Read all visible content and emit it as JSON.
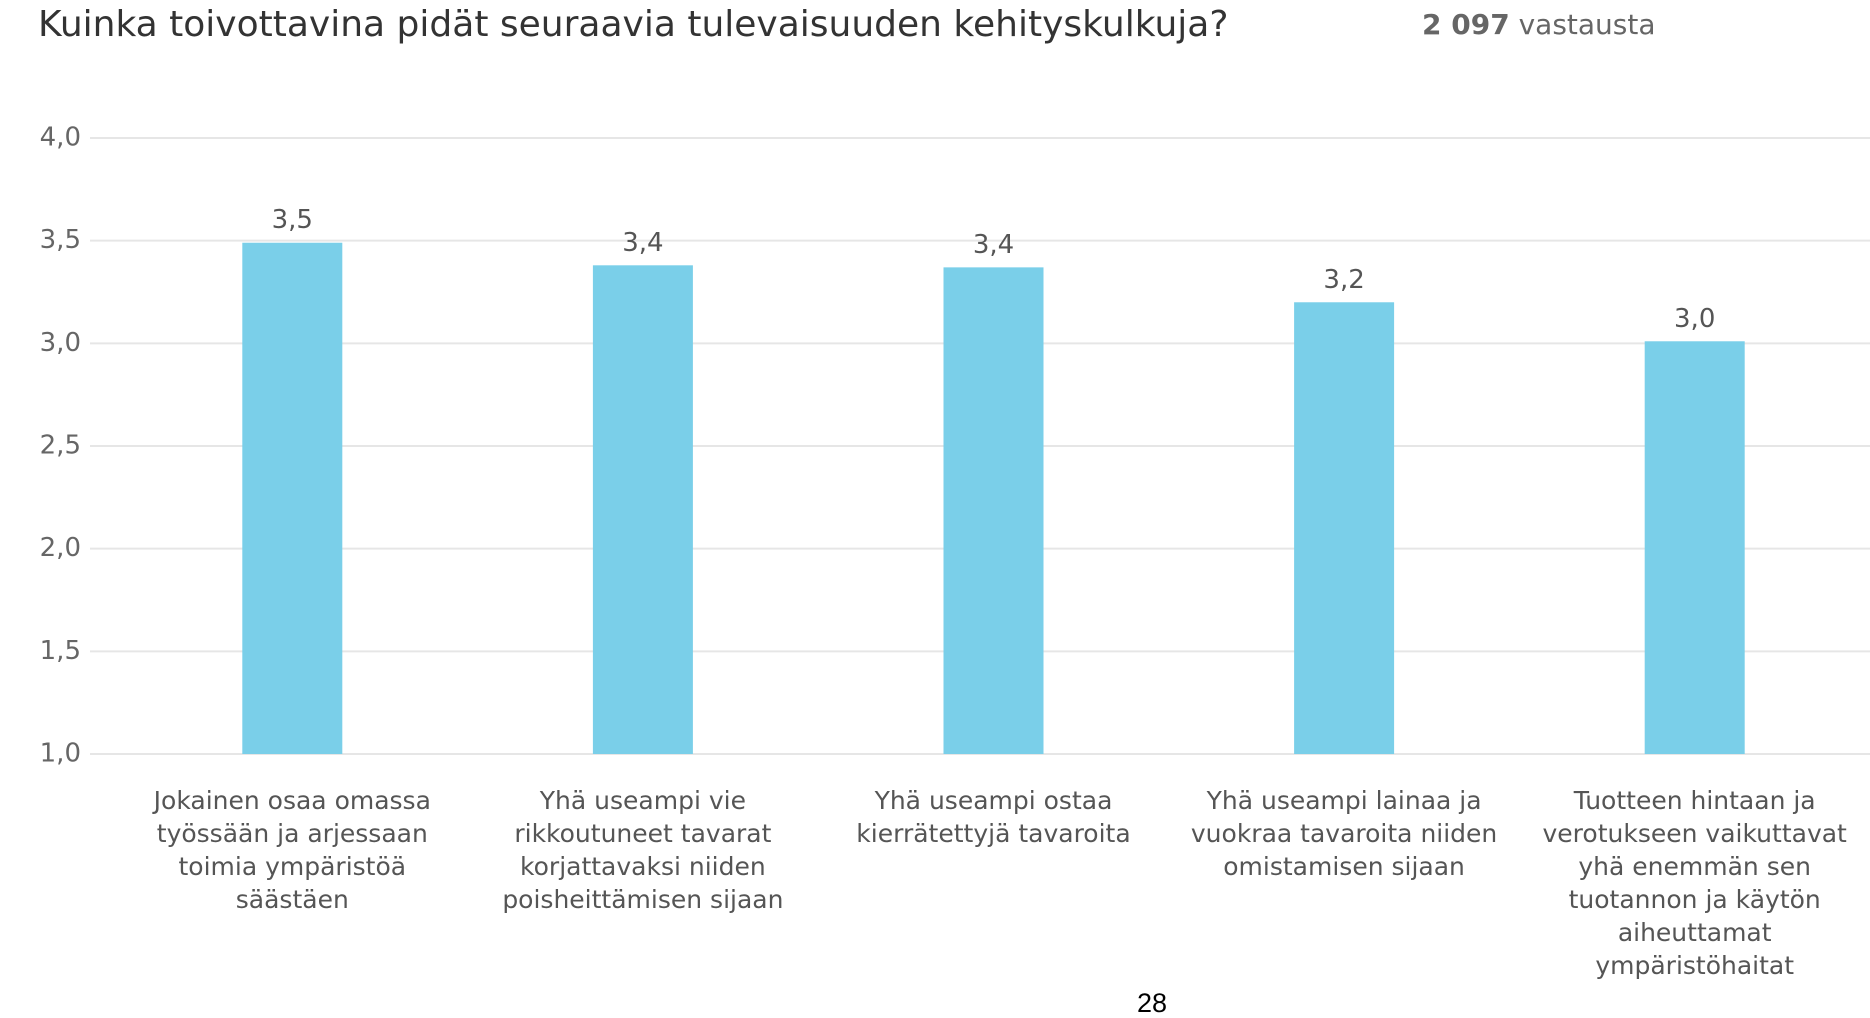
{
  "chart_data": {
    "type": "bar",
    "title": "Kuinka toivottavina pidät seuraavia tulevaisuuden kehityskulkuja?",
    "response_count": "2 097",
    "response_label": "vastausta",
    "categories": [
      "Jokainen osaa omassa työssään ja arjessaan toimia ympäristöä säästäen",
      "Yhä useampi vie rikkoutuneet tavarat korjattavaksi niiden poisheittämisen sijaan",
      "Yhä useampi ostaa kierrätettyjä tavaroita",
      "Yhä useampi lainaa ja vuokraa tavaroita niiden omistamisen sijaan",
      "Tuotteen hintaan ja verotukseen vaikuttavat yhä enemmän sen tuotannon ja käytön aiheuttamat ympäristöhaitat"
    ],
    "values": [
      3.49,
      3.38,
      3.37,
      3.2,
      3.01
    ],
    "value_labels": [
      "3,5",
      "3,4",
      "3,4",
      "3,2",
      "3,0"
    ],
    "color": "#7acfe9",
    "ylim": [
      1,
      4
    ],
    "yticks": [
      {
        "value": 1,
        "label": "1,0"
      },
      {
        "value": 1.5,
        "label": "1,5"
      },
      {
        "value": 2,
        "label": "2,0"
      },
      {
        "value": 2.5,
        "label": "2,5"
      },
      {
        "value": 3,
        "label": "3,0"
      },
      {
        "value": 3.5,
        "label": "3,5"
      },
      {
        "value": 4,
        "label": "4,0"
      }
    ],
    "grid": true
  },
  "page_number": "28"
}
